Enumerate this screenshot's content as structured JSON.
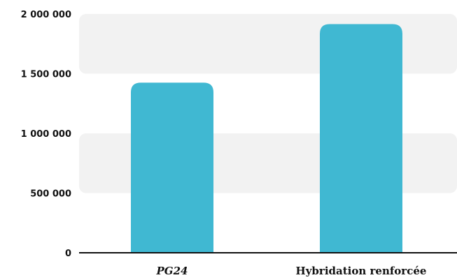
{
  "chart_data": {
    "type": "bar",
    "categories": [
      "PG24",
      "Hybridation renforcée"
    ],
    "values": [
      1425000,
      1915000
    ],
    "ylim": [
      0,
      2000000
    ],
    "yticks": [
      0,
      500000,
      1000000,
      1500000,
      2000000
    ],
    "ytick_labels": [
      "0",
      "500 000",
      "1 000 000",
      "1 500 000",
      "2 000 000"
    ],
    "title": "",
    "xlabel": "",
    "ylabel": "",
    "bar_color": "#40b8d2",
    "band_color": "#f2f2f2",
    "axis_color": "#111111",
    "grid": "alternating horizontal bands",
    "legend": "none"
  }
}
